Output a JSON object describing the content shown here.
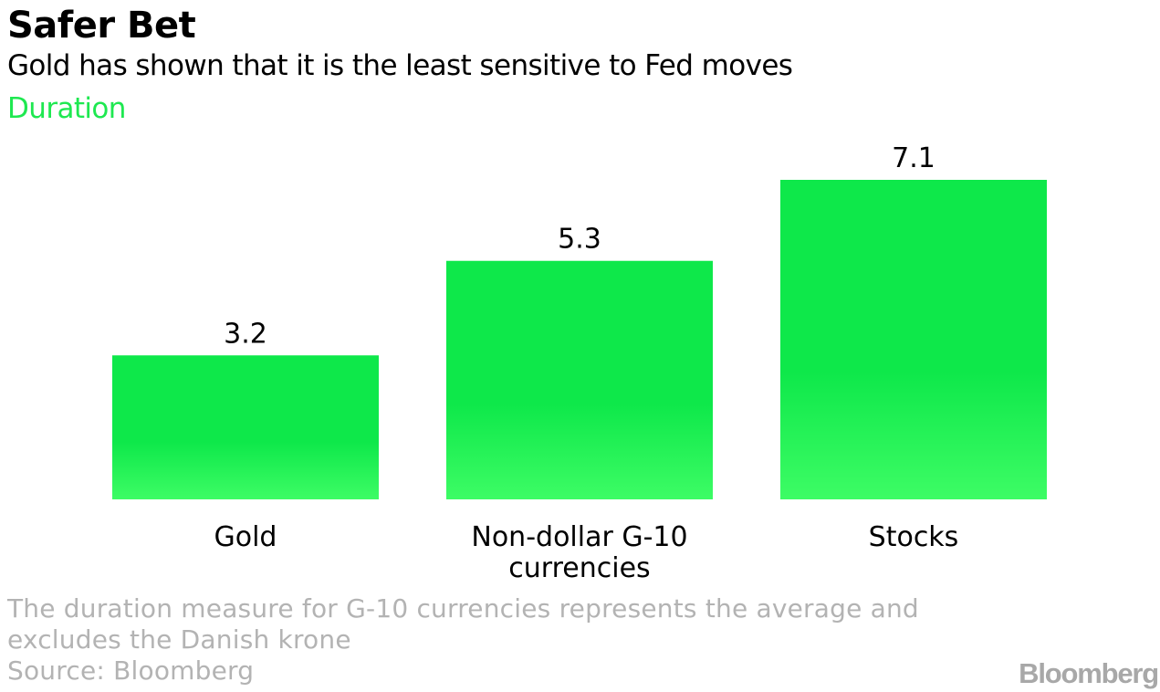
{
  "chart_data": {
    "type": "bar",
    "title": "Safer Bet",
    "subtitle": "Gold has shown that it is the least sensitive to Fed moves",
    "series_label": "Duration",
    "categories": [
      [
        "Gold"
      ],
      [
        "Non-dollar G-10",
        "currencies"
      ],
      [
        "Stocks"
      ]
    ],
    "values": [
      3.2,
      5.3,
      7.1
    ],
    "value_labels": [
      "3.2",
      "5.3",
      "7.1"
    ],
    "ylim": [
      0,
      7.1
    ],
    "grid": false,
    "legend": "none",
    "colors": {
      "bar_top": "#0ee84a",
      "bar_bottom": "#3dfc65",
      "series_label": "#1ee850"
    }
  },
  "footnote": [
    "The duration measure for G-10 currencies represents the average and",
    "excludes the Danish krone"
  ],
  "source": "Source: Bloomberg",
  "brand": "Bloomberg"
}
